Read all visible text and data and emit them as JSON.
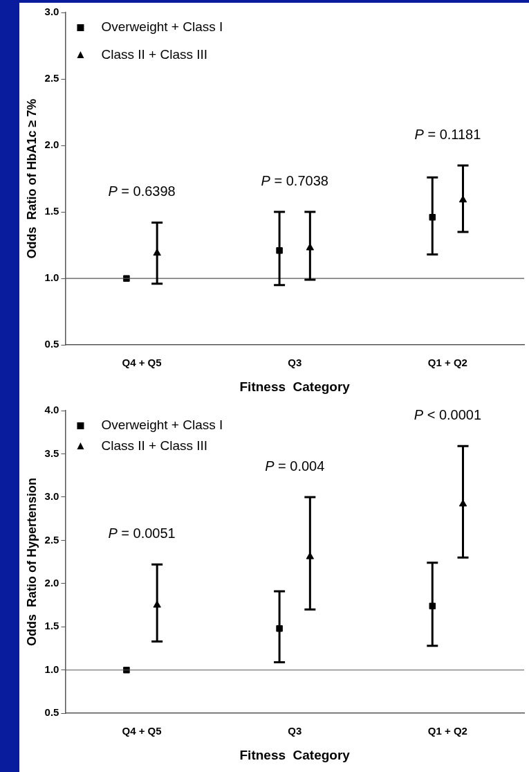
{
  "chart_data": [
    {
      "type": "scatter",
      "xlabel": "Fitness  Category",
      "ylabel": "Odds  Ratio of HbA1c ≥ 7%",
      "categories": [
        "Q4 + Q5",
        "Q3",
        "Q1 + Q2"
      ],
      "ylim": [
        0.5,
        3.0
      ],
      "yticks": [
        {
          "value": 0.5,
          "label": "0.5"
        },
        {
          "value": 1.0,
          "label": "1.0"
        },
        {
          "value": 1.5,
          "label": "1.5"
        },
        {
          "value": 2.0,
          "label": "2.0"
        },
        {
          "value": 2.5,
          "label": "2.5"
        },
        {
          "value": 3.0,
          "label": "3.0"
        }
      ],
      "grid": false,
      "legend": "top left",
      "series": [
        {
          "name": "Overweight + Class I",
          "color": "#000000",
          "marker": "square",
          "values": [
            1.0,
            1.21,
            1.46
          ],
          "errors": [
            null,
            [
              0.95,
              1.5
            ],
            [
              1.18,
              1.76
            ]
          ]
        },
        {
          "name": "Class II + Class III",
          "color": "#000000",
          "marker": "triangle",
          "values": [
            1.19,
            1.23,
            1.59
          ],
          "errors": [
            [
              0.96,
              1.42
            ],
            [
              0.99,
              1.5
            ],
            [
              1.35,
              1.85
            ]
          ]
        }
      ],
      "ref_lines": [
        {
          "axis": "y",
          "value": 1.0,
          "color": "#555555"
        }
      ],
      "annotations": [
        "P = 0.6398",
        "P = 0.7038",
        "P = 0.1181"
      ]
    },
    {
      "type": "scatter",
      "xlabel": "Fitness  Category",
      "ylabel": "Odds  Ratio of Hypertension",
      "categories": [
        "Q4 + Q5",
        "Q3",
        "Q1 + Q2"
      ],
      "ylim": [
        0.5,
        4.0
      ],
      "yticks": [
        {
          "value": 0.5,
          "label": "0.5"
        },
        {
          "value": 1.0,
          "label": "1.0"
        },
        {
          "value": 1.5,
          "label": "1.5"
        },
        {
          "value": 2.0,
          "label": "2.0"
        },
        {
          "value": 2.5,
          "label": "2.5"
        },
        {
          "value": 3.0,
          "label": "3.0"
        },
        {
          "value": 3.5,
          "label": "3.5"
        },
        {
          "value": 4.0,
          "label": "4.0"
        }
      ],
      "grid": false,
      "legend": "top left",
      "series": [
        {
          "name": "Overweight + Class I",
          "color": "#000000",
          "marker": "square",
          "values": [
            1.0,
            1.48,
            1.74
          ],
          "errors": [
            null,
            [
              1.09,
              1.91
            ],
            [
              1.28,
              2.24
            ]
          ]
        },
        {
          "name": "Class II + Class III",
          "color": "#000000",
          "marker": "triangle",
          "values": [
            1.75,
            2.31,
            2.92
          ],
          "errors": [
            [
              1.33,
              2.22
            ],
            [
              1.7,
              3.0
            ],
            [
              2.3,
              3.59
            ]
          ]
        }
      ],
      "ref_lines": [
        {
          "axis": "y",
          "value": 1.0,
          "color": "#555555"
        }
      ],
      "annotations": [
        "P = 0.0051",
        "P = 0.004",
        "P < 0.0001"
      ]
    }
  ]
}
